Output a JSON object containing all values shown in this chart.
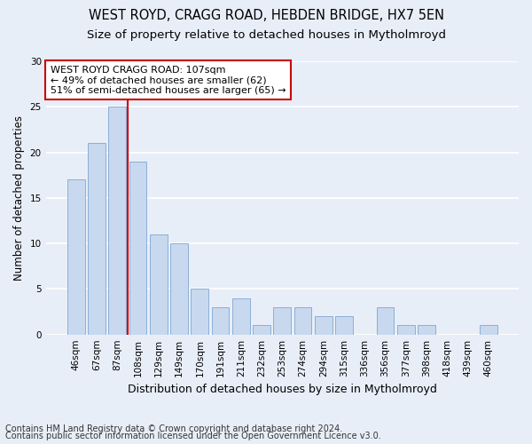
{
  "title": "WEST ROYD, CRAGG ROAD, HEBDEN BRIDGE, HX7 5EN",
  "subtitle": "Size of property relative to detached houses in Mytholmroyd",
  "xlabel": "Distribution of detached houses by size in Mytholmroyd",
  "ylabel": "Number of detached properties",
  "footer1": "Contains HM Land Registry data © Crown copyright and database right 2024.",
  "footer2": "Contains public sector information licensed under the Open Government Licence v3.0.",
  "categories": [
    "46sqm",
    "67sqm",
    "87sqm",
    "108sqm",
    "129sqm",
    "149sqm",
    "170sqm",
    "191sqm",
    "211sqm",
    "232sqm",
    "253sqm",
    "274sqm",
    "294sqm",
    "315sqm",
    "336sqm",
    "356sqm",
    "377sqm",
    "398sqm",
    "418sqm",
    "439sqm",
    "460sqm"
  ],
  "values": [
    17,
    21,
    25,
    19,
    11,
    10,
    5,
    3,
    4,
    1,
    3,
    3,
    2,
    2,
    0,
    3,
    1,
    1,
    0,
    0,
    1
  ],
  "bar_color": "#c8d8ee",
  "bar_edge_color": "#8ab0d8",
  "background_color": "#e8eef8",
  "grid_color": "#ffffff",
  "marker_label": "WEST ROYD CRAGG ROAD: 107sqm",
  "annotation_line1": "← 49% of detached houses are smaller (62)",
  "annotation_line2": "51% of semi-detached houses are larger (65) →",
  "annotation_box_color": "#ffffff",
  "annotation_box_edge_color": "#cc0000",
  "marker_line_color": "#cc0000",
  "ylim": [
    0,
    30
  ],
  "yticks": [
    0,
    5,
    10,
    15,
    20,
    25,
    30
  ],
  "title_fontsize": 10.5,
  "subtitle_fontsize": 9.5,
  "xlabel_fontsize": 9,
  "ylabel_fontsize": 8.5,
  "tick_fontsize": 7.5,
  "annotation_fontsize": 8,
  "footer_fontsize": 7
}
